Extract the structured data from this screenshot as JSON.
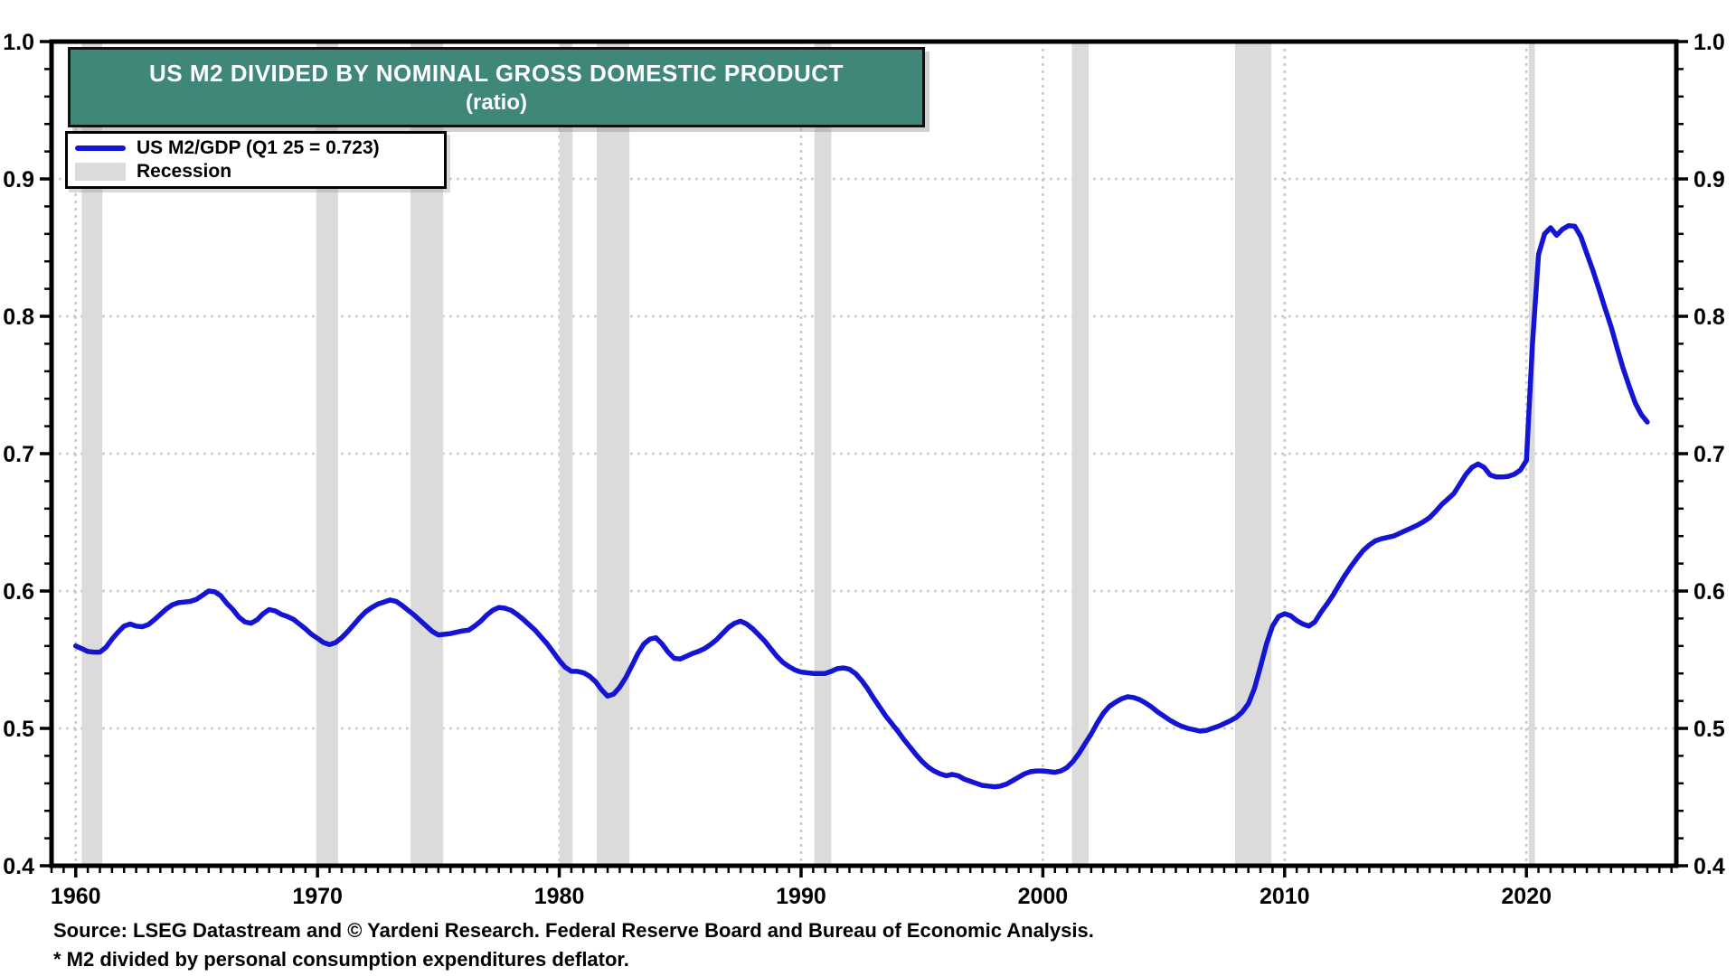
{
  "header": {
    "title_line1": "US M2 DIVIDED BY NOMINAL GROSS DOMESTIC PRODUCT",
    "title_line2": "(ratio)"
  },
  "legend": {
    "series_label": "US M2/GDP (Q1 25 = 0.723)",
    "recession_label": "Recession"
  },
  "footer": {
    "source_line": "Source: LSEG Datastream and © Yardeni Research. Federal Reserve Board and Bureau of Economic Analysis.",
    "footnote_line": "* M2 divided by personal consumption expenditures deflator."
  },
  "colors": {
    "line_blue": "#1414d2",
    "recession_gray": "#dbdbdb",
    "title_bg": "#3e8779",
    "title_text": "#ffffff",
    "grid_gray": "#c9c9c9",
    "axis_black": "#000000",
    "label_black": "#000000"
  },
  "chart_data": {
    "type": "line",
    "title": "US M2 DIVIDED BY NOMINAL GROSS DOMESTIC PRODUCT",
    "subtitle": "(ratio)",
    "xlabel": "",
    "ylabel": "ratio",
    "x_domain": [
      1959.0,
      2026.2
    ],
    "y_domain": [
      0.4,
      1.0
    ],
    "x_major_ticks": [
      1960,
      1970,
      1980,
      1990,
      2000,
      2010,
      2020
    ],
    "x_minor_step": 0.5,
    "y_major_step": 0.1,
    "y_minor_step": 0.02,
    "grid": "dotted gridlines at decade years and each 0.1",
    "legend_position": "top-left",
    "last_point_label": "Q1 25 = 0.723",
    "recessions": [
      [
        1960.25,
        1961.1
      ],
      [
        1969.95,
        1970.85
      ],
      [
        1973.85,
        1975.2
      ],
      [
        1980.0,
        1980.55
      ],
      [
        1981.55,
        1982.9
      ],
      [
        1990.55,
        1991.25
      ],
      [
        2001.2,
        2001.9
      ],
      [
        2007.95,
        2009.45
      ],
      [
        2020.1,
        2020.35
      ]
    ],
    "series": [
      {
        "name": "US M2/GDP",
        "points": [
          [
            1960.0,
            0.56
          ],
          [
            1960.25,
            0.558
          ],
          [
            1960.5,
            0.556
          ],
          [
            1960.75,
            0.5555
          ],
          [
            1961.0,
            0.5555
          ],
          [
            1961.25,
            0.559
          ],
          [
            1961.5,
            0.565
          ],
          [
            1961.75,
            0.57
          ],
          [
            1962.0,
            0.5745
          ],
          [
            1962.25,
            0.576
          ],
          [
            1962.5,
            0.5745
          ],
          [
            1962.75,
            0.574
          ],
          [
            1963.0,
            0.5755
          ],
          [
            1963.25,
            0.579
          ],
          [
            1963.5,
            0.583
          ],
          [
            1963.75,
            0.587
          ],
          [
            1964.0,
            0.59
          ],
          [
            1964.25,
            0.5915
          ],
          [
            1964.5,
            0.592
          ],
          [
            1964.75,
            0.5925
          ],
          [
            1965.0,
            0.594
          ],
          [
            1965.25,
            0.597
          ],
          [
            1965.5,
            0.6
          ],
          [
            1965.75,
            0.5995
          ],
          [
            1966.0,
            0.5965
          ],
          [
            1966.25,
            0.591
          ],
          [
            1966.5,
            0.5865
          ],
          [
            1966.75,
            0.581
          ],
          [
            1967.0,
            0.5775
          ],
          [
            1967.25,
            0.5765
          ],
          [
            1967.5,
            0.579
          ],
          [
            1967.75,
            0.5835
          ],
          [
            1968.0,
            0.5865
          ],
          [
            1968.25,
            0.5855
          ],
          [
            1968.5,
            0.583
          ],
          [
            1968.75,
            0.5815
          ],
          [
            1969.0,
            0.5795
          ],
          [
            1969.25,
            0.576
          ],
          [
            1969.5,
            0.5725
          ],
          [
            1969.75,
            0.5685
          ],
          [
            1970.0,
            0.5655
          ],
          [
            1970.25,
            0.5625
          ],
          [
            1970.5,
            0.561
          ],
          [
            1970.75,
            0.5625
          ],
          [
            1971.0,
            0.566
          ],
          [
            1971.25,
            0.5705
          ],
          [
            1971.5,
            0.5755
          ],
          [
            1971.75,
            0.5805
          ],
          [
            1972.0,
            0.585
          ],
          [
            1972.25,
            0.588
          ],
          [
            1972.5,
            0.5905
          ],
          [
            1972.75,
            0.592
          ],
          [
            1973.0,
            0.5935
          ],
          [
            1973.25,
            0.5925
          ],
          [
            1973.5,
            0.5895
          ],
          [
            1974.0,
            0.5825
          ],
          [
            1974.5,
            0.5745
          ],
          [
            1974.75,
            0.5705
          ],
          [
            1975.0,
            0.568
          ],
          [
            1975.25,
            0.5685
          ],
          [
            1975.5,
            0.569
          ],
          [
            1975.75,
            0.57
          ],
          [
            1976.0,
            0.571
          ],
          [
            1976.25,
            0.5715
          ],
          [
            1976.5,
            0.5745
          ],
          [
            1976.75,
            0.578
          ],
          [
            1977.0,
            0.5825
          ],
          [
            1977.25,
            0.586
          ],
          [
            1977.5,
            0.588
          ],
          [
            1977.75,
            0.5875
          ],
          [
            1978.0,
            0.586
          ],
          [
            1978.25,
            0.583
          ],
          [
            1978.5,
            0.5795
          ],
          [
            1978.75,
            0.5755
          ],
          [
            1979.0,
            0.5715
          ],
          [
            1979.25,
            0.5665
          ],
          [
            1979.5,
            0.5615
          ],
          [
            1979.75,
            0.5555
          ],
          [
            1980.0,
            0.5495
          ],
          [
            1980.25,
            0.5445
          ],
          [
            1980.5,
            0.5415
          ],
          [
            1980.75,
            0.5415
          ],
          [
            1981.0,
            0.5405
          ],
          [
            1981.25,
            0.538
          ],
          [
            1981.5,
            0.534
          ],
          [
            1981.75,
            0.528
          ],
          [
            1982.0,
            0.5235
          ],
          [
            1982.25,
            0.525
          ],
          [
            1982.5,
            0.53
          ],
          [
            1982.75,
            0.537
          ],
          [
            1983.0,
            0.5455
          ],
          [
            1983.25,
            0.5545
          ],
          [
            1983.5,
            0.5615
          ],
          [
            1983.75,
            0.565
          ],
          [
            1984.0,
            0.566
          ],
          [
            1984.25,
            0.5615
          ],
          [
            1984.5,
            0.5555
          ],
          [
            1984.75,
            0.551
          ],
          [
            1985.0,
            0.5505
          ],
          [
            1985.25,
            0.5525
          ],
          [
            1985.5,
            0.5545
          ],
          [
            1985.75,
            0.556
          ],
          [
            1986.0,
            0.558
          ],
          [
            1986.25,
            0.561
          ],
          [
            1986.5,
            0.5645
          ],
          [
            1986.75,
            0.569
          ],
          [
            1987.0,
            0.5735
          ],
          [
            1987.25,
            0.5765
          ],
          [
            1987.5,
            0.578
          ],
          [
            1987.75,
            0.576
          ],
          [
            1988.0,
            0.5725
          ],
          [
            1988.25,
            0.568
          ],
          [
            1988.5,
            0.5635
          ],
          [
            1988.75,
            0.558
          ],
          [
            1989.0,
            0.5525
          ],
          [
            1989.25,
            0.548
          ],
          [
            1989.5,
            0.545
          ],
          [
            1989.75,
            0.5425
          ],
          [
            1990.0,
            0.541
          ],
          [
            1990.5,
            0.54
          ],
          [
            1991.0,
            0.54
          ],
          [
            1991.25,
            0.5415
          ],
          [
            1991.5,
            0.5435
          ],
          [
            1991.75,
            0.544
          ],
          [
            1992.0,
            0.543
          ],
          [
            1992.25,
            0.54
          ],
          [
            1992.5,
            0.535
          ],
          [
            1992.75,
            0.529
          ],
          [
            1993.0,
            0.522
          ],
          [
            1993.25,
            0.5155
          ],
          [
            1993.5,
            0.509
          ],
          [
            1993.75,
            0.5035
          ],
          [
            1994.0,
            0.498
          ],
          [
            1994.25,
            0.492
          ],
          [
            1994.5,
            0.4865
          ],
          [
            1994.75,
            0.481
          ],
          [
            1995.0,
            0.476
          ],
          [
            1995.25,
            0.472
          ],
          [
            1995.5,
            0.469
          ],
          [
            1995.75,
            0.467
          ],
          [
            1996.0,
            0.4655
          ],
          [
            1996.25,
            0.4665
          ],
          [
            1996.5,
            0.4655
          ],
          [
            1996.75,
            0.463
          ],
          [
            1997.0,
            0.4615
          ],
          [
            1997.25,
            0.46
          ],
          [
            1997.5,
            0.4585
          ],
          [
            1997.75,
            0.458
          ],
          [
            1998.0,
            0.4575
          ],
          [
            1998.25,
            0.458
          ],
          [
            1998.5,
            0.4595
          ],
          [
            1998.75,
            0.462
          ],
          [
            1999.0,
            0.4645
          ],
          [
            1999.25,
            0.467
          ],
          [
            1999.5,
            0.4685
          ],
          [
            1999.75,
            0.469
          ],
          [
            2000.0,
            0.469
          ],
          [
            2000.25,
            0.4685
          ],
          [
            2000.5,
            0.468
          ],
          [
            2000.75,
            0.469
          ],
          [
            2001.0,
            0.4715
          ],
          [
            2001.25,
            0.476
          ],
          [
            2001.5,
            0.482
          ],
          [
            2001.75,
            0.489
          ],
          [
            2002.0,
            0.496
          ],
          [
            2002.25,
            0.504
          ],
          [
            2002.5,
            0.511
          ],
          [
            2002.75,
            0.516
          ],
          [
            2003.0,
            0.519
          ],
          [
            2003.25,
            0.5215
          ],
          [
            2003.5,
            0.523
          ],
          [
            2003.75,
            0.5225
          ],
          [
            2004.0,
            0.521
          ],
          [
            2004.25,
            0.5185
          ],
          [
            2004.5,
            0.5155
          ],
          [
            2004.75,
            0.512
          ],
          [
            2005.0,
            0.509
          ],
          [
            2005.25,
            0.506
          ],
          [
            2005.5,
            0.5035
          ],
          [
            2005.75,
            0.5015
          ],
          [
            2006.0,
            0.5
          ],
          [
            2006.25,
            0.499
          ],
          [
            2006.5,
            0.498
          ],
          [
            2006.75,
            0.4985
          ],
          [
            2007.0,
            0.5
          ],
          [
            2007.25,
            0.5015
          ],
          [
            2007.5,
            0.5035
          ],
          [
            2007.75,
            0.5055
          ],
          [
            2008.0,
            0.508
          ],
          [
            2008.25,
            0.512
          ],
          [
            2008.5,
            0.518
          ],
          [
            2008.75,
            0.529
          ],
          [
            2009.0,
            0.545
          ],
          [
            2009.25,
            0.5615
          ],
          [
            2009.5,
            0.5745
          ],
          [
            2009.75,
            0.5815
          ],
          [
            2010.0,
            0.5835
          ],
          [
            2010.25,
            0.582
          ],
          [
            2010.5,
            0.5785
          ],
          [
            2010.75,
            0.576
          ],
          [
            2011.0,
            0.5745
          ],
          [
            2011.25,
            0.5775
          ],
          [
            2011.5,
            0.5845
          ],
          [
            2011.75,
            0.5905
          ],
          [
            2012.0,
            0.597
          ],
          [
            2012.25,
            0.6045
          ],
          [
            2012.5,
            0.6115
          ],
          [
            2012.75,
            0.618
          ],
          [
            2013.0,
            0.624
          ],
          [
            2013.25,
            0.6295
          ],
          [
            2013.5,
            0.6335
          ],
          [
            2013.75,
            0.6365
          ],
          [
            2014.0,
            0.638
          ],
          [
            2014.25,
            0.639
          ],
          [
            2014.5,
            0.64
          ],
          [
            2014.75,
            0.642
          ],
          [
            2015.0,
            0.644
          ],
          [
            2015.25,
            0.646
          ],
          [
            2015.5,
            0.648
          ],
          [
            2015.75,
            0.6505
          ],
          [
            2016.0,
            0.6535
          ],
          [
            2016.25,
            0.658
          ],
          [
            2016.5,
            0.663
          ],
          [
            2016.75,
            0.667
          ],
          [
            2017.0,
            0.671
          ],
          [
            2017.25,
            0.678
          ],
          [
            2017.5,
            0.685
          ],
          [
            2017.75,
            0.69
          ],
          [
            2018.0,
            0.6925
          ],
          [
            2018.25,
            0.69
          ],
          [
            2018.5,
            0.6845
          ],
          [
            2018.75,
            0.683
          ],
          [
            2019.0,
            0.683
          ],
          [
            2019.25,
            0.6835
          ],
          [
            2019.5,
            0.685
          ],
          [
            2019.75,
            0.688
          ],
          [
            2020.0,
            0.695
          ],
          [
            2020.25,
            0.78
          ],
          [
            2020.5,
            0.845
          ],
          [
            2020.75,
            0.86
          ],
          [
            2021.0,
            0.8645
          ],
          [
            2021.25,
            0.859
          ],
          [
            2021.5,
            0.8635
          ],
          [
            2021.75,
            0.866
          ],
          [
            2022.0,
            0.8655
          ],
          [
            2022.25,
            0.858
          ],
          [
            2022.5,
            0.8455
          ],
          [
            2022.75,
            0.8335
          ],
          [
            2023.0,
            0.82
          ],
          [
            2023.25,
            0.806
          ],
          [
            2023.5,
            0.7925
          ],
          [
            2023.75,
            0.777
          ],
          [
            2024.0,
            0.762
          ],
          [
            2024.25,
            0.749
          ],
          [
            2024.5,
            0.737
          ],
          [
            2024.75,
            0.7285
          ],
          [
            2025.0,
            0.723
          ]
        ]
      }
    ]
  }
}
